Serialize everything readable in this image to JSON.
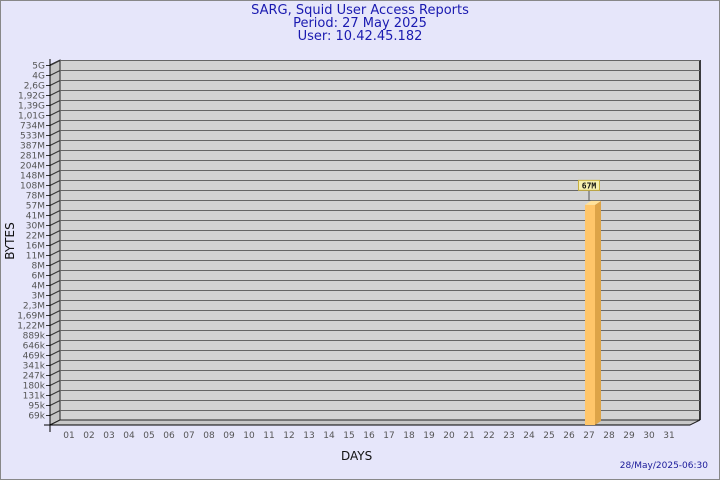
{
  "header": {
    "title": "SARG, Squid User Access Reports",
    "period": "Period: 27 May 2025",
    "user": "User: 10.42.45.182"
  },
  "footer": {
    "timestamp": "28/May/2025-06:30"
  },
  "colors": {
    "background": "#e6e6fa",
    "plot": "#d3d3d3",
    "bar_front": "#ffc66a",
    "bar_side": "#dda448",
    "bar_top": "#ffe29a",
    "title": "#1a1ab0",
    "label_box": "#f6f0b0"
  },
  "chart_data": {
    "type": "bar",
    "xlabel": "DAYS",
    "ylabel": "BYTES",
    "y_scale": "log",
    "grid": true,
    "three_d": true,
    "y_ticks": [
      "5G",
      "4G",
      "2,6G",
      "1,92G",
      "1,39G",
      "1,01G",
      "734M",
      "533M",
      "387M",
      "281M",
      "204M",
      "148M",
      "108M",
      "78M",
      "57M",
      "41M",
      "30M",
      "22M",
      "16M",
      "11M",
      "8M",
      "6M",
      "4M",
      "3M",
      "2,3M",
      "1,69M",
      "1,22M",
      "889k",
      "646k",
      "469k",
      "341k",
      "247k",
      "180k",
      "131k",
      "95k",
      "69k"
    ],
    "y_tick_values": [
      5000000000,
      4000000000,
      2600000000,
      1920000000,
      1390000000,
      1010000000,
      734000000,
      533000000,
      387000000,
      281000000,
      204000000,
      148000000,
      108000000,
      78000000,
      57000000,
      41000000,
      30000000,
      22000000,
      16000000,
      11000000,
      8000000,
      6000000,
      4000000,
      3000000,
      2300000,
      1690000,
      1220000,
      889000,
      646000,
      469000,
      341000,
      247000,
      180000,
      131000,
      95000,
      69000
    ],
    "categories": [
      "01",
      "02",
      "03",
      "04",
      "05",
      "06",
      "07",
      "08",
      "09",
      "10",
      "11",
      "12",
      "13",
      "14",
      "15",
      "16",
      "17",
      "18",
      "19",
      "20",
      "21",
      "22",
      "23",
      "24",
      "25",
      "26",
      "27",
      "28",
      "29",
      "30",
      "31"
    ],
    "values": [
      0,
      0,
      0,
      0,
      0,
      0,
      0,
      0,
      0,
      0,
      0,
      0,
      0,
      0,
      0,
      0,
      0,
      0,
      0,
      0,
      0,
      0,
      0,
      0,
      0,
      0,
      67000000,
      0,
      0,
      0,
      0
    ],
    "data_labels": {
      "27": "67M"
    }
  }
}
